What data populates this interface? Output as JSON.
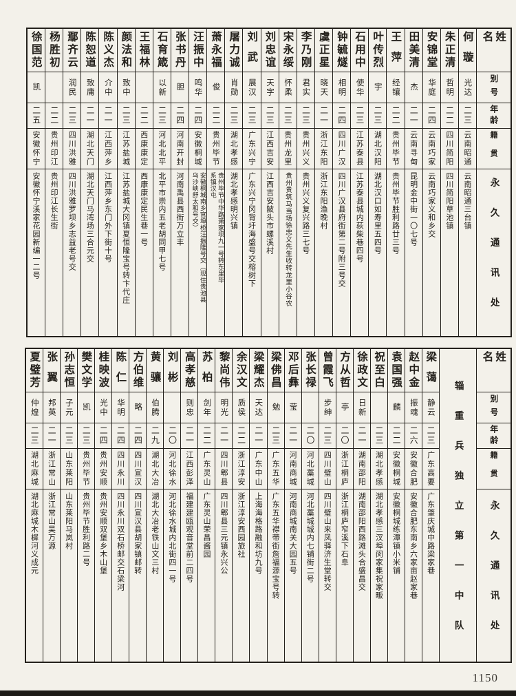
{
  "page": {
    "page_number": "1150"
  },
  "headers": {
    "name": "姓名",
    "alias": "别号",
    "age": "年龄",
    "native_place": "籍贯",
    "address": "永久通讯处"
  },
  "sections": [
    {
      "unit_label": null,
      "people": [
        {
          "name": "何璇",
          "alias": "光达",
          "age": "二三",
          "native_place": "云南昭通",
          "address": "云南昭通三台镇"
        },
        {
          "name": "朱正清",
          "alias": "哲明",
          "age": "二二",
          "native_place": "四川简阳",
          "address": "四川简阳草池镇"
        },
        {
          "name": "安锦堂",
          "alias": "华庭",
          "age": "二四",
          "native_place": "云南巧家",
          "address": "云南巧家义和乡交"
        },
        {
          "name": "田美清",
          "alias": "杰",
          "age": "二一",
          "native_place": "云南寻甸",
          "address": "昆明金中街一〇七号"
        },
        {
          "name": "王萍",
          "alias": "经镶",
          "age": "二二",
          "native_place": "贵州毕节",
          "address": "贵州毕节胜利路廿三号"
        },
        {
          "name": "叶传烈",
          "alias": "宇",
          "age": "二三",
          "native_place": "湖北汉阳",
          "address": "湖北汉口如寿里五四号"
        },
        {
          "name": "石用中",
          "alias": "使华",
          "age": "二三",
          "native_place": "江苏泰县",
          "address": "江苏泰县城内荻柴巷四号"
        },
        {
          "name": "钟毓燧",
          "alias": "相明",
          "age": "二四",
          "native_place": "四川广汉",
          "address": "四川广汉县府街第二号附三号交"
        },
        {
          "name": "虞正星",
          "alias": "晓天",
          "age": "二一",
          "native_place": "浙江东阳",
          "address": "浙江东阳渔晚村"
        },
        {
          "name": "李乃刚",
          "alias": "君实",
          "age": "二三",
          "native_place": "贵州兴义",
          "address": "贵州兴义复兴路三七号"
        },
        {
          "name": "宋永绥",
          "alias": "怀柔",
          "age": "二三",
          "native_place": "贵州龙里",
          "address": "贵州贵筑马当场徐忠义先生收转龙里小谷农"
        },
        {
          "name": "刘忠谊",
          "alias": "天字",
          "age": "二三",
          "native_place": "江西吉安",
          "address": "江西吉安陂头市螺溪村"
        },
        {
          "name": "刘武",
          "alias": "展汉",
          "age": "二三",
          "native_place": "广东兴宁",
          "address": "广东兴宁冈背圩海盛号交榕树下"
        },
        {
          "name": "屠力诚",
          "alias": "肖勋",
          "age": "二三",
          "native_place": "湖北孝感",
          "address": "湖北孝感明兴镇"
        },
        {
          "name": "萧永福",
          "alias": "俊",
          "age": "二二",
          "native_place": "贵州毕节",
          "address": "贵州毕节中华路萧家坝九一号转东里毕\n系镇汉屯"
        },
        {
          "name": "汪振中",
          "alias": "鸣华",
          "age": "二四",
          "native_place": "安徽桐城",
          "address": "安徽桐城南乡官埠桥汪振隆号交（现住贵池县\n乌沙峡舒太和号交）"
        },
        {
          "name": "张书丹",
          "alias": "胆",
          "age": "二四",
          "native_place": "河南开封",
          "address": "河南禹县西街万立丰"
        },
        {
          "name": "石育箴",
          "alias": "以新",
          "age": "二三",
          "native_place": "河北北平",
          "address": "北平市崇内五老胡同甲七号"
        },
        {
          "name": "王福林",
          "alias": "",
          "age": "二二",
          "native_place": "西康康定",
          "address": "西康康定民生巷一号"
        },
        {
          "name": "颜法和",
          "alias": "致中",
          "age": "二三",
          "native_place": "江苏盐城",
          "address": "江苏盐城大冈镇夏恒隆宝号转卞代庄"
        },
        {
          "name": "陈义杰",
          "alias": "介中",
          "age": "二一",
          "native_place": "江西萍乡",
          "address": "江西萍乡东门外下街十号"
        },
        {
          "name": "陈恕道",
          "alias": "致庸",
          "age": "二一",
          "native_place": "湖北天门",
          "address": "湖北天门马湾场三合元交"
        },
        {
          "name": "鄢齐云",
          "alias": "润民",
          "age": "二三",
          "native_place": "四川洪雅",
          "address": "四川洪雅罗坝乡志益老号交"
        },
        {
          "name": "杨胜初",
          "alias": "",
          "age": "二二",
          "native_place": "贵州印江",
          "address": "贵州印江长生街"
        },
        {
          "name": "徐国范",
          "alias": "凯",
          "age": "二五",
          "native_place": "安徽怀宁",
          "address": "安徽怀宁溪家花园新编一二号"
        }
      ]
    },
    {
      "unit_label": "辎重兵独立第一中队",
      "people": [
        {
          "name": "梁蔼",
          "alias": "静云",
          "age": "二三",
          "native_place": "广东高要",
          "address": "广东肇庆城中路梁家巷"
        },
        {
          "name": "赵中金",
          "alias": "振魂",
          "age": "二六",
          "native_place": "安徽合肥",
          "address": "安徽合肥东南乡六家亩赵家巷"
        },
        {
          "name": "袁国强",
          "alias": "麟",
          "age": "二二",
          "native_place": "安徽桐城",
          "address": "安徽桐城练潭镇小米铺"
        },
        {
          "name": "祝至白",
          "alias": "",
          "age": "二三",
          "native_place": "湖北孝感",
          "address": "湖北孝感三汊埠闵家集祝家畈"
        },
        {
          "name": "徐政文",
          "alias": "日新",
          "age": "二一",
          "native_place": "湖南邵阳",
          "address": "湖南邵阳西路滩头合盛昌交"
        },
        {
          "name": "方从哲",
          "alias": "亭",
          "age": "二〇",
          "native_place": "浙江桐庐",
          "address": "浙江桐庐窄溪下石阜"
        },
        {
          "name": "曾霞飞",
          "alias": "步绅",
          "age": "二三",
          "native_place": "四川璧山",
          "address": "四川璧山来凤驿济生堂转交"
        },
        {
          "name": "张长禄",
          "alias": "",
          "age": "二〇",
          "native_place": "河北藁城",
          "address": "河北藁城城内七铺街二号"
        },
        {
          "name": "邓后彝",
          "alias": "莹",
          "age": "二一",
          "native_place": "河南商城",
          "address": "河南商城南关大园五号"
        },
        {
          "name": "梁佛昌",
          "alias": "勉",
          "age": "二三",
          "native_place": "广东五华",
          "address": "广东五华襟带街詹福源宝号转"
        },
        {
          "name": "梁耀杰",
          "alias": "天达",
          "age": "二一",
          "native_place": "广东中山",
          "address": "上海海格路融和坊九号"
        },
        {
          "name": "余汉文",
          "alias": "质侯",
          "age": "二二",
          "native_place": "浙江淳安",
          "address": "浙江淳安西园旅社"
        },
        {
          "name": "黎尚伟",
          "alias": "明光",
          "age": "二一",
          "native_place": "四川郫县",
          "address": "四川郫县三元镇永兴公"
        },
        {
          "name": "苏柏",
          "alias": "剑年",
          "age": "二二",
          "native_place": "广东灵山",
          "address": "广东灵山荣昌酱园"
        },
        {
          "name": "高孝慈",
          "alias": "则忠",
          "age": "二一",
          "native_place": "江西彭泽",
          "address": "福建建瓯观音堂前二四号"
        },
        {
          "name": "刘彬",
          "alias": "",
          "age": "二〇",
          "native_place": "河北徐水",
          "address": "河北徐水城内北街四一号"
        },
        {
          "name": "黄骧",
          "alias": "伯腾",
          "age": "二九",
          "native_place": "湖北大冶",
          "address": "湖北大冶老铁山文三村"
        },
        {
          "name": "方伯维",
          "alias": "略",
          "age": "二四",
          "native_place": "四川宣汉",
          "address": "四川宣汉县胡家镇邮转"
        },
        {
          "name": "陈仁",
          "alias": "华明",
          "age": "二四",
          "native_place": "四川永川",
          "address": "四川永川双石桥邮交石梁河"
        },
        {
          "name": "桂映波",
          "alias": "光中",
          "age": "二四",
          "native_place": "贵州安顺",
          "address": "贵州安顺双堡乡木山堡"
        },
        {
          "name": "樊文学",
          "alias": "凯",
          "age": "二三",
          "native_place": "贵州毕节",
          "address": "贵州毕节胜利路二号"
        },
        {
          "name": "孙志恒",
          "alias": "子元",
          "age": "二三",
          "native_place": "山东莱阳",
          "address": "山东莱阳马岚村"
        },
        {
          "name": "张翼",
          "alias": "邦英",
          "age": "二一",
          "native_place": "浙江常山",
          "address": "浙江常山吴万源"
        },
        {
          "name": "夏璧芳",
          "alias": "仲煌",
          "age": "二三",
          "native_place": "湖北麻城",
          "address": "湖北麻城木樨河义成元"
        }
      ]
    }
  ]
}
